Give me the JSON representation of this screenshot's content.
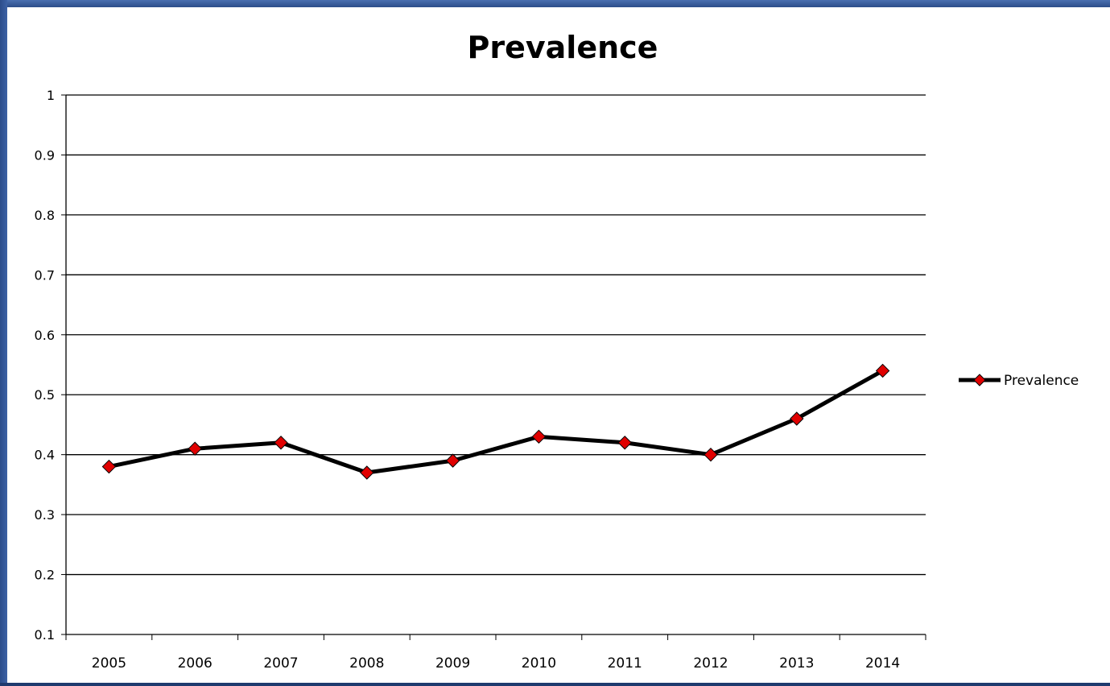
{
  "chart_data": {
    "type": "line",
    "title": "Prevalence",
    "xlabel": "",
    "ylabel": "",
    "categories": [
      "2005",
      "2006",
      "2007",
      "2008",
      "2009",
      "2010",
      "2011",
      "2012",
      "2013",
      "2014"
    ],
    "series": [
      {
        "name": "Prevalence",
        "values": [
          0.38,
          0.41,
          0.42,
          0.37,
          0.39,
          0.43,
          0.42,
          0.4,
          0.46,
          0.54
        ],
        "line_color": "#000000",
        "marker": "diamond",
        "marker_color": "#e00000"
      }
    ],
    "ylim": [
      0.1,
      1
    ],
    "yticks": [
      "0.1",
      "0.2",
      "0.3",
      "0.4",
      "0.5",
      "0.6",
      "0.7",
      "0.8",
      "0.9",
      "1"
    ],
    "grid": true,
    "legend_position": "right"
  },
  "colors": {
    "frame": "#1f3a6e",
    "background": "#ffffff",
    "gridline": "#000000",
    "marker": "#e00000"
  }
}
